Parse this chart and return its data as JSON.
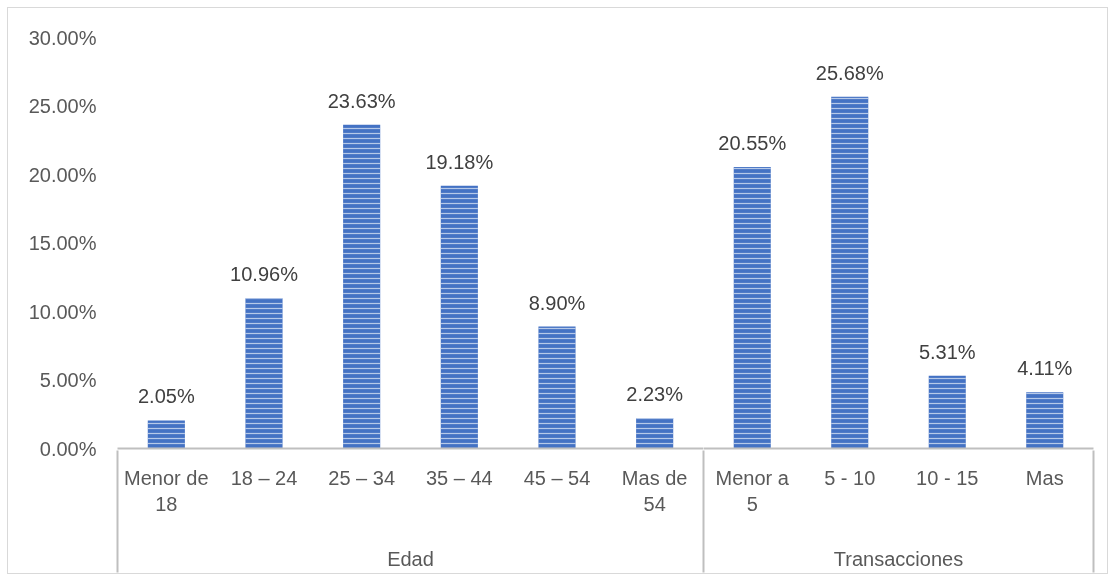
{
  "chart_data": [
    {
      "type": "bar",
      "xlabel": "Edad",
      "categories": [
        "Menor de 18",
        "18 – 24",
        "25 – 34",
        "35 – 44",
        "45 – 54",
        "Mas de 54"
      ],
      "values": [
        2.05,
        10.96,
        23.63,
        19.18,
        8.9,
        2.23
      ],
      "value_labels": [
        "2.05%",
        "10.96%",
        "23.63%",
        "19.18%",
        "8.90%",
        "2.23%"
      ],
      "color": "#4472c4",
      "ylim": [
        0,
        30
      ],
      "yticks": [
        {
          "value": 0,
          "label": "0.00%"
        },
        {
          "value": 5,
          "label": "5.00%"
        },
        {
          "value": 10,
          "label": "10.00%"
        },
        {
          "value": 15,
          "label": "15.00%"
        },
        {
          "value": 20,
          "label": "20.00%"
        },
        {
          "value": 25,
          "label": "25.00%"
        },
        {
          "value": 30,
          "label": "30.00%"
        }
      ],
      "grid": false
    },
    {
      "type": "bar",
      "xlabel": "Transacciones",
      "categories": [
        "Menor a 5",
        "5 - 10",
        "10 - 15",
        "Mas"
      ],
      "values": [
        20.55,
        25.68,
        5.31,
        4.11
      ],
      "value_labels": [
        "20.55%",
        "25.68%",
        "5.31%",
        "4.11%"
      ],
      "color": "#4472c4",
      "ylim": [
        0,
        30
      ],
      "tick_labels": "x",
      "grid": false
    }
  ]
}
